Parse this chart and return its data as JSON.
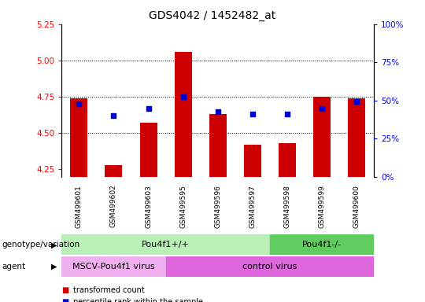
{
  "title": "GDS4042 / 1452482_at",
  "samples": [
    "GSM499601",
    "GSM499602",
    "GSM499603",
    "GSM499595",
    "GSM499596",
    "GSM499597",
    "GSM499598",
    "GSM499599",
    "GSM499600"
  ],
  "red_values": [
    4.74,
    4.28,
    4.57,
    5.06,
    4.63,
    4.42,
    4.43,
    4.75,
    4.74
  ],
  "blue_values": [
    4.7,
    4.62,
    4.67,
    4.75,
    4.65,
    4.63,
    4.63,
    4.67,
    4.72
  ],
  "y_min": 4.2,
  "y_max": 5.25,
  "y_ticks_left": [
    4.25,
    4.5,
    4.75,
    5.0,
    5.25
  ],
  "y_right_percents": [
    0,
    25,
    50,
    75,
    100
  ],
  "y_right_labels": [
    "0%",
    "25%",
    "50%",
    "75%",
    "100%"
  ],
  "grid_lines": [
    4.5,
    4.75,
    5.0
  ],
  "bar_color": "#cc0000",
  "dot_color": "#0000cc",
  "bar_bottom": 4.2,
  "genotype_groups": [
    {
      "label": "Pou4f1+/+",
      "start": 0,
      "end": 6,
      "color": "#b8f0b8"
    },
    {
      "label": "Pou4f1-/-",
      "start": 6,
      "end": 9,
      "color": "#60cc60"
    }
  ],
  "agent_groups": [
    {
      "label": "MSCV-Pou4f1 virus",
      "start": 0,
      "end": 3,
      "color": "#f0b0f0"
    },
    {
      "label": "control virus",
      "start": 3,
      "end": 9,
      "color": "#dd66dd"
    }
  ],
  "genotype_label": "genotype/variation",
  "agent_label": "agent",
  "legend_items": [
    {
      "color": "#cc0000",
      "label": "transformed count"
    },
    {
      "color": "#0000cc",
      "label": "percentile rank within the sample"
    }
  ],
  "bar_width": 0.5,
  "dot_size": 25,
  "sample_bg_color": "#c8c8c8",
  "sample_divider_color": "#ffffff"
}
